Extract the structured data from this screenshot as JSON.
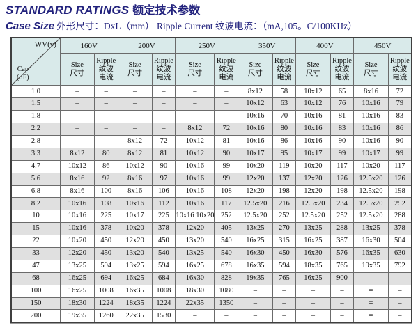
{
  "header": {
    "title_en": "STANDARD RATINGS",
    "title_cn": "额定技术参数",
    "subtitle_en": "Case Size",
    "subtitle_rest": "外形尺寸：DxL（mm）  Ripple Current 纹波电流：（mA,105。C/100KHz）"
  },
  "colors": {
    "header_bg": "#d9eaea",
    "alt_row_bg": "#e0e0e0",
    "title": "#22227d",
    "border": "#6b6b6b"
  },
  "table": {
    "corner": {
      "wv": "WV(v)",
      "cap": "Cap",
      "cap_unit": "(μF)"
    },
    "voltages": [
      "160V",
      "200V",
      "250V",
      "350V",
      "400V",
      "450V"
    ],
    "sub": {
      "size": [
        "Size",
        "尺寸"
      ],
      "ripple": [
        "Ripple",
        "纹波",
        "电流"
      ]
    },
    "rows": [
      {
        "cap": "1.0",
        "cells": [
          "–",
          "–",
          "–",
          "–",
          "–",
          "–",
          "8x12",
          "58",
          "10x12",
          "65",
          "8x16",
          "72"
        ]
      },
      {
        "cap": "1.5",
        "cells": [
          "–",
          "–",
          "–",
          "–",
          "–",
          "–",
          "10x12",
          "63",
          "10x12",
          "76",
          "10x16",
          "79"
        ]
      },
      {
        "cap": "1.8",
        "cells": [
          "–",
          "–",
          "–",
          "–",
          "–",
          "–",
          "10x16",
          "70",
          "10x16",
          "81",
          "10x16",
          "83"
        ]
      },
      {
        "cap": "2.2",
        "cells": [
          "–",
          "–",
          "–",
          "–",
          "8x12",
          "72",
          "10x16",
          "80",
          "10x16",
          "83",
          "10x16",
          "86"
        ]
      },
      {
        "cap": "2.8",
        "cells": [
          "–",
          "–",
          "8x12",
          "72",
          "10x12",
          "81",
          "10x16",
          "86",
          "10x16",
          "90",
          "10x16",
          "90"
        ]
      },
      {
        "cap": "3.3",
        "cells": [
          "8x12",
          "80",
          "8x12",
          "81",
          "10x12",
          "90",
          "10x17",
          "95",
          "10x17",
          "99",
          "10x17",
          "99"
        ]
      },
      {
        "cap": "4.7",
        "cells": [
          "10x12",
          "86",
          "10x12",
          "90",
          "10x16",
          "99",
          "10x20",
          "119",
          "10x20",
          "117",
          "10x20",
          "117"
        ]
      },
      {
        "cap": "5.6",
        "cells": [
          "8x16",
          "92",
          "8x16",
          "97",
          "10x16",
          "99",
          "12x20",
          "137",
          "12x20",
          "126",
          "12.5x20",
          "126"
        ]
      },
      {
        "cap": "6.8",
        "cells": [
          "8x16",
          "100",
          "8x16",
          "106",
          "10x16",
          "108",
          "12x20",
          "198",
          "12x20",
          "198",
          "12.5x20",
          "198"
        ]
      },
      {
        "cap": "8.2",
        "cells": [
          "10x16",
          "108",
          "10x16",
          "112",
          "10x16",
          "117",
          "12.5x20",
          "216",
          "12.5x20",
          "234",
          "12.5x20",
          "252"
        ]
      },
      {
        "cap": "10",
        "cells": [
          "10x16",
          "225",
          "10x17",
          "225",
          "10x16 10x20",
          "252",
          "12.5x20",
          "252",
          "12.5x20",
          "252",
          "12.5x20",
          "288"
        ]
      },
      {
        "cap": "15",
        "cells": [
          "10x16",
          "378",
          "10x20",
          "378",
          "12x20",
          "405",
          "13x25",
          "270",
          "13x25",
          "288",
          "13x25",
          "378"
        ]
      },
      {
        "cap": "22",
        "cells": [
          "10x20",
          "450",
          "12x20",
          "450",
          "13x20",
          "540",
          "16x25",
          "315",
          "16x25",
          "387",
          "16x30",
          "504"
        ]
      },
      {
        "cap": "33",
        "cells": [
          "12x20",
          "450",
          "13x20",
          "540",
          "13x25",
          "540",
          "16x30",
          "450",
          "16x30",
          "576",
          "16x35",
          "630"
        ]
      },
      {
        "cap": "47",
        "cells": [
          "13x25",
          "594",
          "13x25",
          "594",
          "16x25",
          "678",
          "16x35",
          "594",
          "18x35",
          "765",
          "19x35",
          "792"
        ]
      },
      {
        "cap": "68",
        "cells": [
          "16x25",
          "694",
          "16x25",
          "684",
          "16x30",
          "828",
          "19x35",
          "765",
          "16x25",
          "900",
          "–",
          "–"
        ]
      },
      {
        "cap": "100",
        "cells": [
          "16x25",
          "1008",
          "16x35",
          "1008",
          "18x30",
          "1080",
          "–",
          "–",
          "–",
          "–",
          "=",
          "–"
        ]
      },
      {
        "cap": "150",
        "cells": [
          "18x30",
          "1224",
          "18x35",
          "1224",
          "22x35",
          "1350",
          "–",
          "–",
          "–",
          "–",
          "=",
          "–"
        ]
      },
      {
        "cap": "200",
        "cells": [
          "19x35",
          "1260",
          "22x35",
          "1530",
          "–",
          "–",
          "–",
          "–",
          "–",
          "–",
          "=",
          "–"
        ]
      }
    ]
  }
}
